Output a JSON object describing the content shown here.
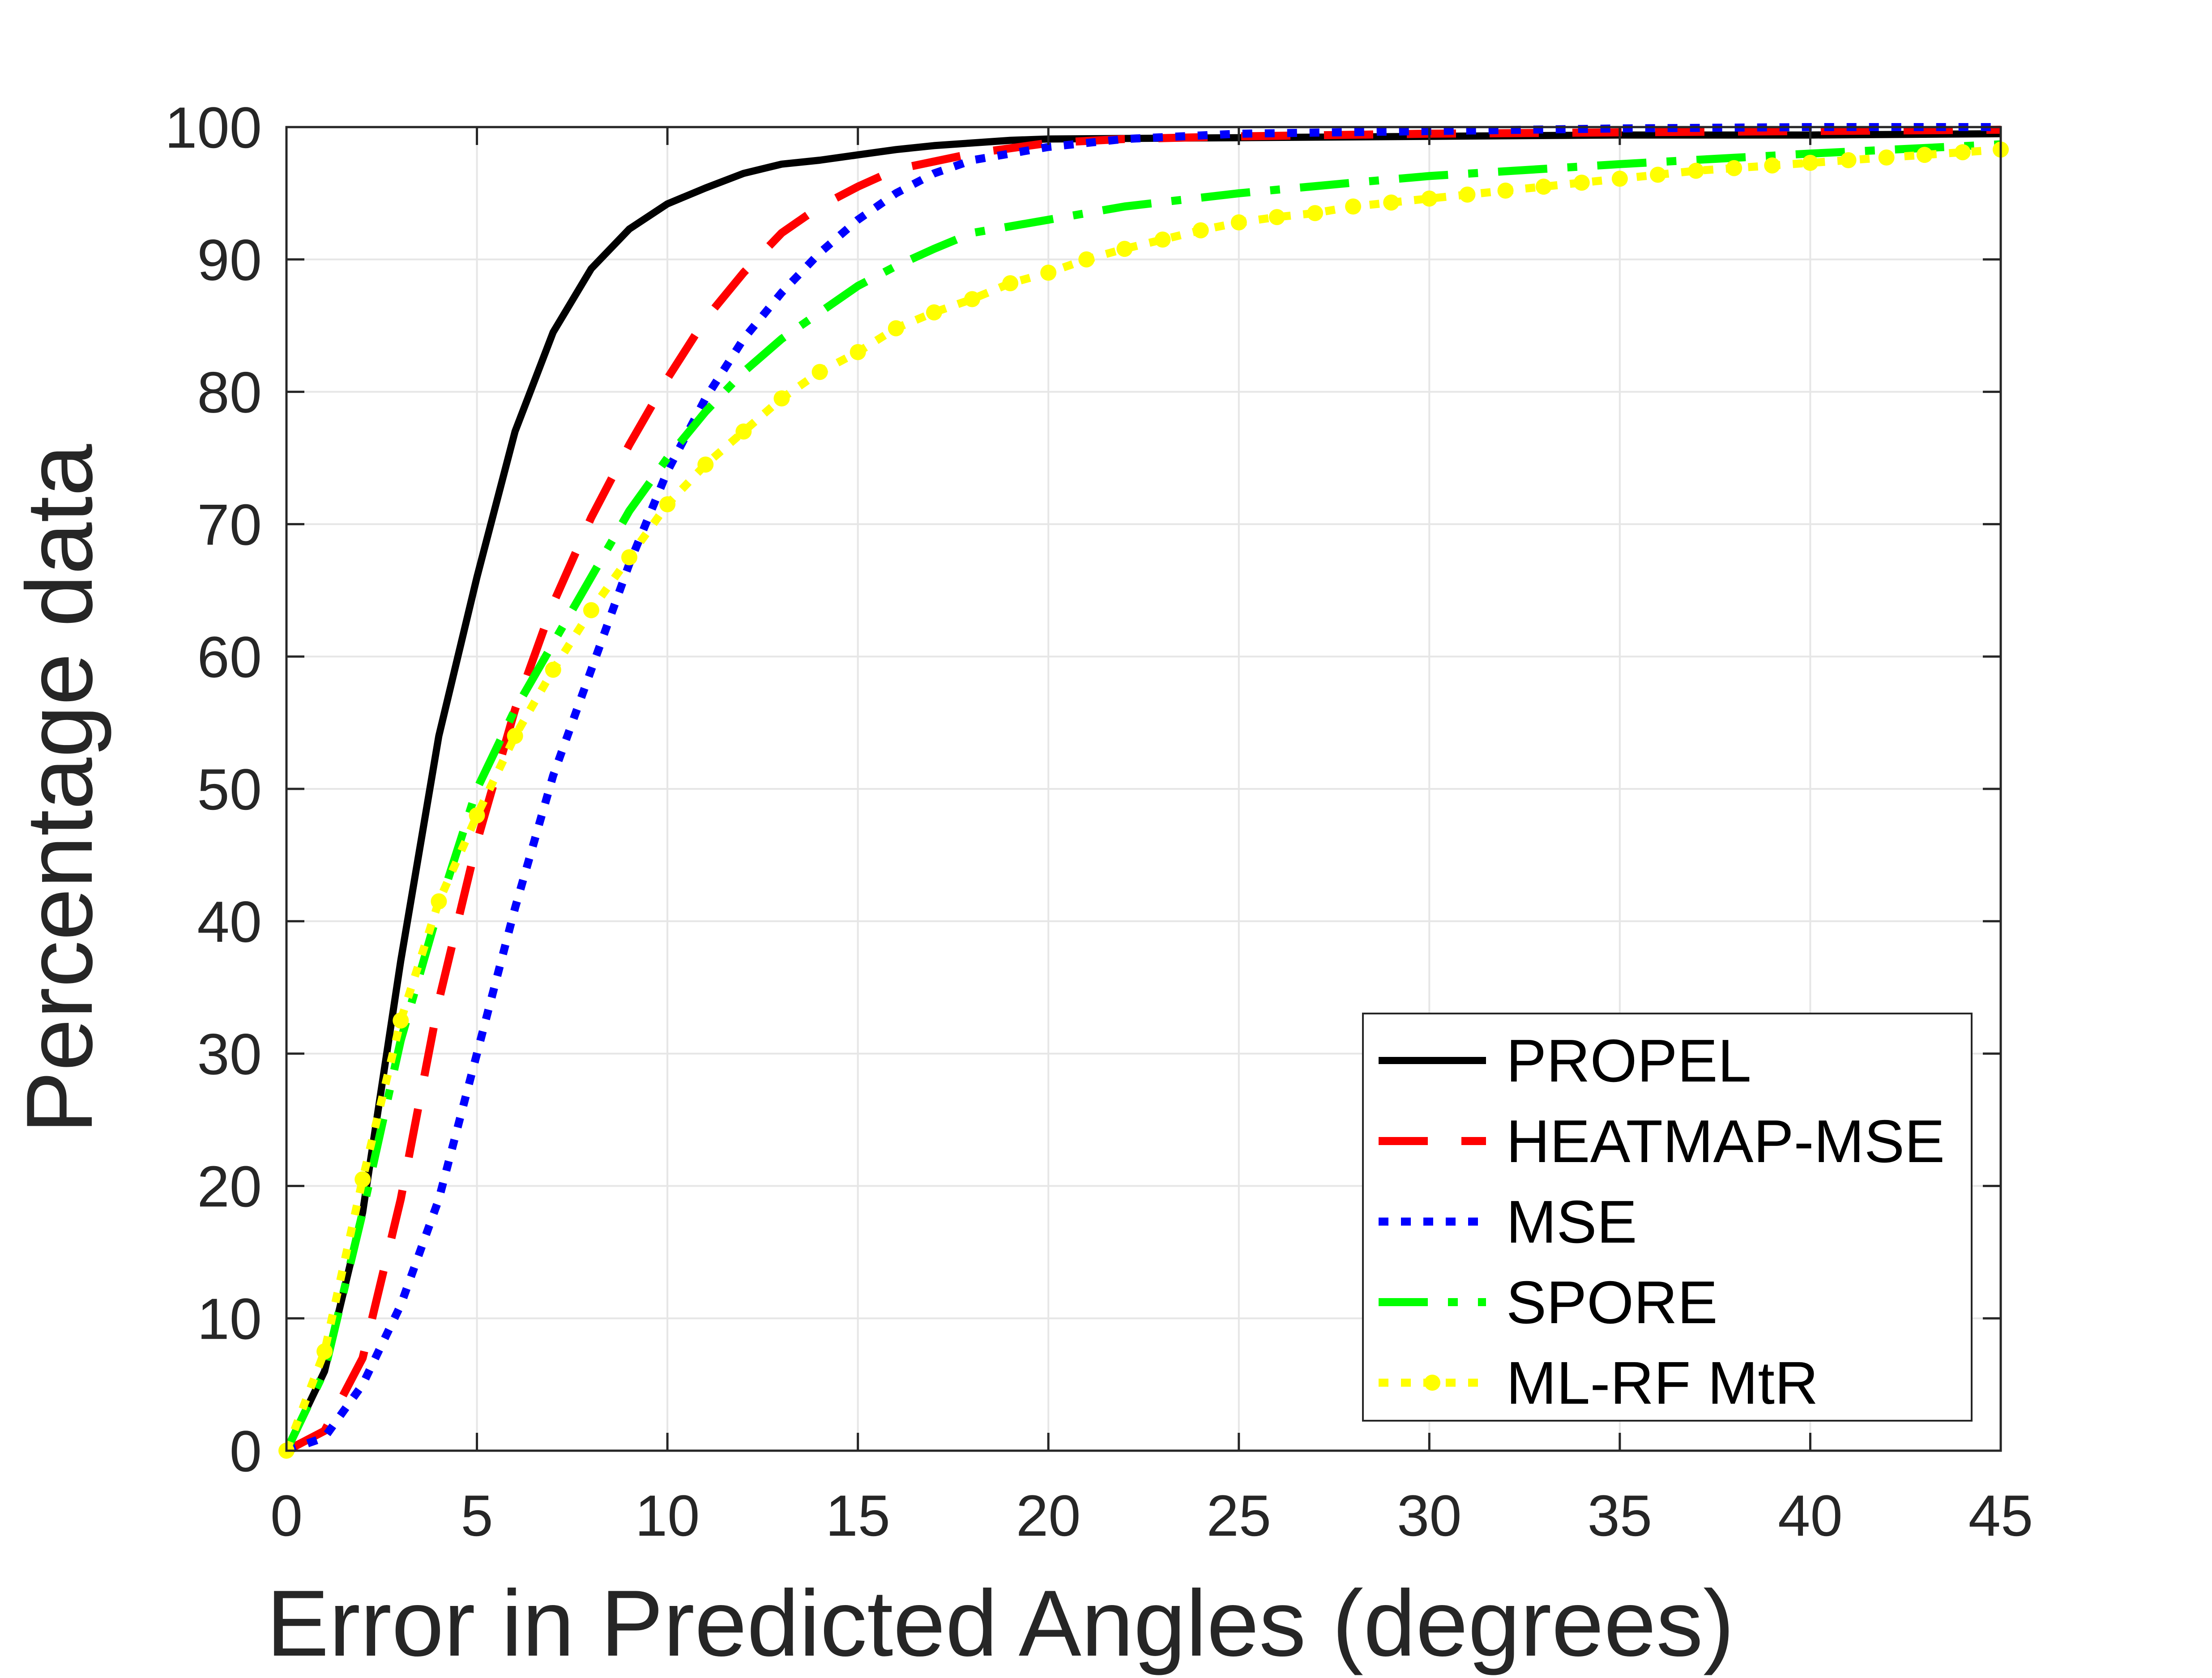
{
  "chart_data": {
    "type": "line",
    "title": "",
    "xlabel": "Error in Predicted Angles (degrees)",
    "ylabel": "Percentage data",
    "xlim": [
      0,
      45
    ],
    "ylim": [
      0,
      100
    ],
    "xticks": [
      0,
      5,
      10,
      15,
      20,
      25,
      30,
      35,
      40,
      45
    ],
    "yticks": [
      0,
      10,
      20,
      30,
      40,
      50,
      60,
      70,
      80,
      90,
      100
    ],
    "grid": true,
    "legend_position": "bottom-right",
    "series": [
      {
        "name": "PROPEL",
        "color": "#000000",
        "style": "solid",
        "marker": "none",
        "x": [
          0,
          1,
          2,
          3,
          4,
          5,
          6,
          7,
          8,
          9,
          10,
          11,
          12,
          13,
          14,
          15,
          16,
          17,
          18,
          19,
          20,
          25,
          30,
          35,
          40,
          45
        ],
        "y": [
          0,
          6,
          18,
          37,
          54,
          66,
          77,
          84.5,
          89.3,
          92.3,
          94.2,
          95.4,
          96.5,
          97.2,
          97.5,
          97.9,
          98.3,
          98.6,
          98.8,
          99.0,
          99.1,
          99.2,
          99.3,
          99.4,
          99.4,
          99.5
        ]
      },
      {
        "name": "HEATMAP-MSE",
        "color": "#ff0000",
        "style": "dashed",
        "marker": "none",
        "x": [
          0,
          1,
          2,
          3,
          4,
          5,
          6,
          7,
          8,
          9,
          10,
          11,
          12,
          13,
          14,
          15,
          16,
          18,
          20,
          22,
          25,
          30,
          35,
          40,
          45
        ],
        "y": [
          0,
          1.5,
          7,
          19,
          34,
          46,
          56,
          64,
          70.5,
          76,
          81,
          85.5,
          89,
          92,
          94,
          95.5,
          96.8,
          98,
          98.8,
          99.1,
          99.3,
          99.5,
          99.6,
          99.7,
          99.8
        ]
      },
      {
        "name": "MSE",
        "color": "#0000ff",
        "style": "dotted",
        "marker": "none",
        "x": [
          0,
          1,
          2,
          3,
          4,
          5,
          6,
          7,
          8,
          9,
          10,
          11,
          12,
          13,
          14,
          15,
          16,
          17,
          18,
          20,
          22,
          25,
          30,
          35,
          40,
          45
        ],
        "y": [
          0,
          1,
          5,
          11,
          19,
          30,
          41,
          51,
          59,
          67,
          74,
          79.5,
          84,
          87.5,
          90.5,
          93,
          95,
          96.5,
          97.5,
          98.5,
          99.1,
          99.5,
          99.7,
          99.9,
          100,
          100
        ]
      },
      {
        "name": "SPORE",
        "color": "#00ff00",
        "style": "dashdot",
        "marker": "none",
        "x": [
          0,
          1,
          2,
          3,
          4,
          5,
          6,
          7,
          8,
          9,
          10,
          11,
          12,
          13,
          14,
          15,
          16,
          17,
          18,
          20,
          22,
          25,
          28,
          30,
          35,
          40,
          45
        ],
        "y": [
          0,
          6,
          18,
          31,
          41,
          50,
          56,
          61,
          66,
          71,
          75,
          78.5,
          81.5,
          84,
          86,
          88,
          89.5,
          90.8,
          92,
          93,
          94,
          95,
          95.8,
          96.3,
          97.2,
          98,
          98.7
        ]
      },
      {
        "name": "ML-RF MtR",
        "color": "#ffff00",
        "style": "dotted",
        "marker": "dot",
        "x": [
          0,
          1,
          2,
          3,
          4,
          5,
          6,
          7,
          8,
          9,
          10,
          11,
          12,
          13,
          14,
          15,
          16,
          17,
          18,
          19,
          20,
          21,
          22,
          23,
          24,
          25,
          26,
          27,
          28,
          29,
          30,
          31,
          32,
          33,
          34,
          35,
          36,
          37,
          38,
          39,
          40,
          41,
          42,
          43,
          44,
          45
        ],
        "y": [
          0,
          7.5,
          20.5,
          32.5,
          41.5,
          48,
          54,
          59,
          63.5,
          67.5,
          71.5,
          74.5,
          77,
          79.5,
          81.5,
          83,
          84.8,
          86,
          87,
          88.2,
          89,
          90,
          90.8,
          91.5,
          92.2,
          92.8,
          93.2,
          93.5,
          94,
          94.3,
          94.6,
          94.9,
          95.2,
          95.5,
          95.8,
          96.1,
          96.4,
          96.7,
          96.9,
          97.1,
          97.3,
          97.5,
          97.7,
          97.9,
          98.1,
          98.3
        ]
      }
    ]
  }
}
